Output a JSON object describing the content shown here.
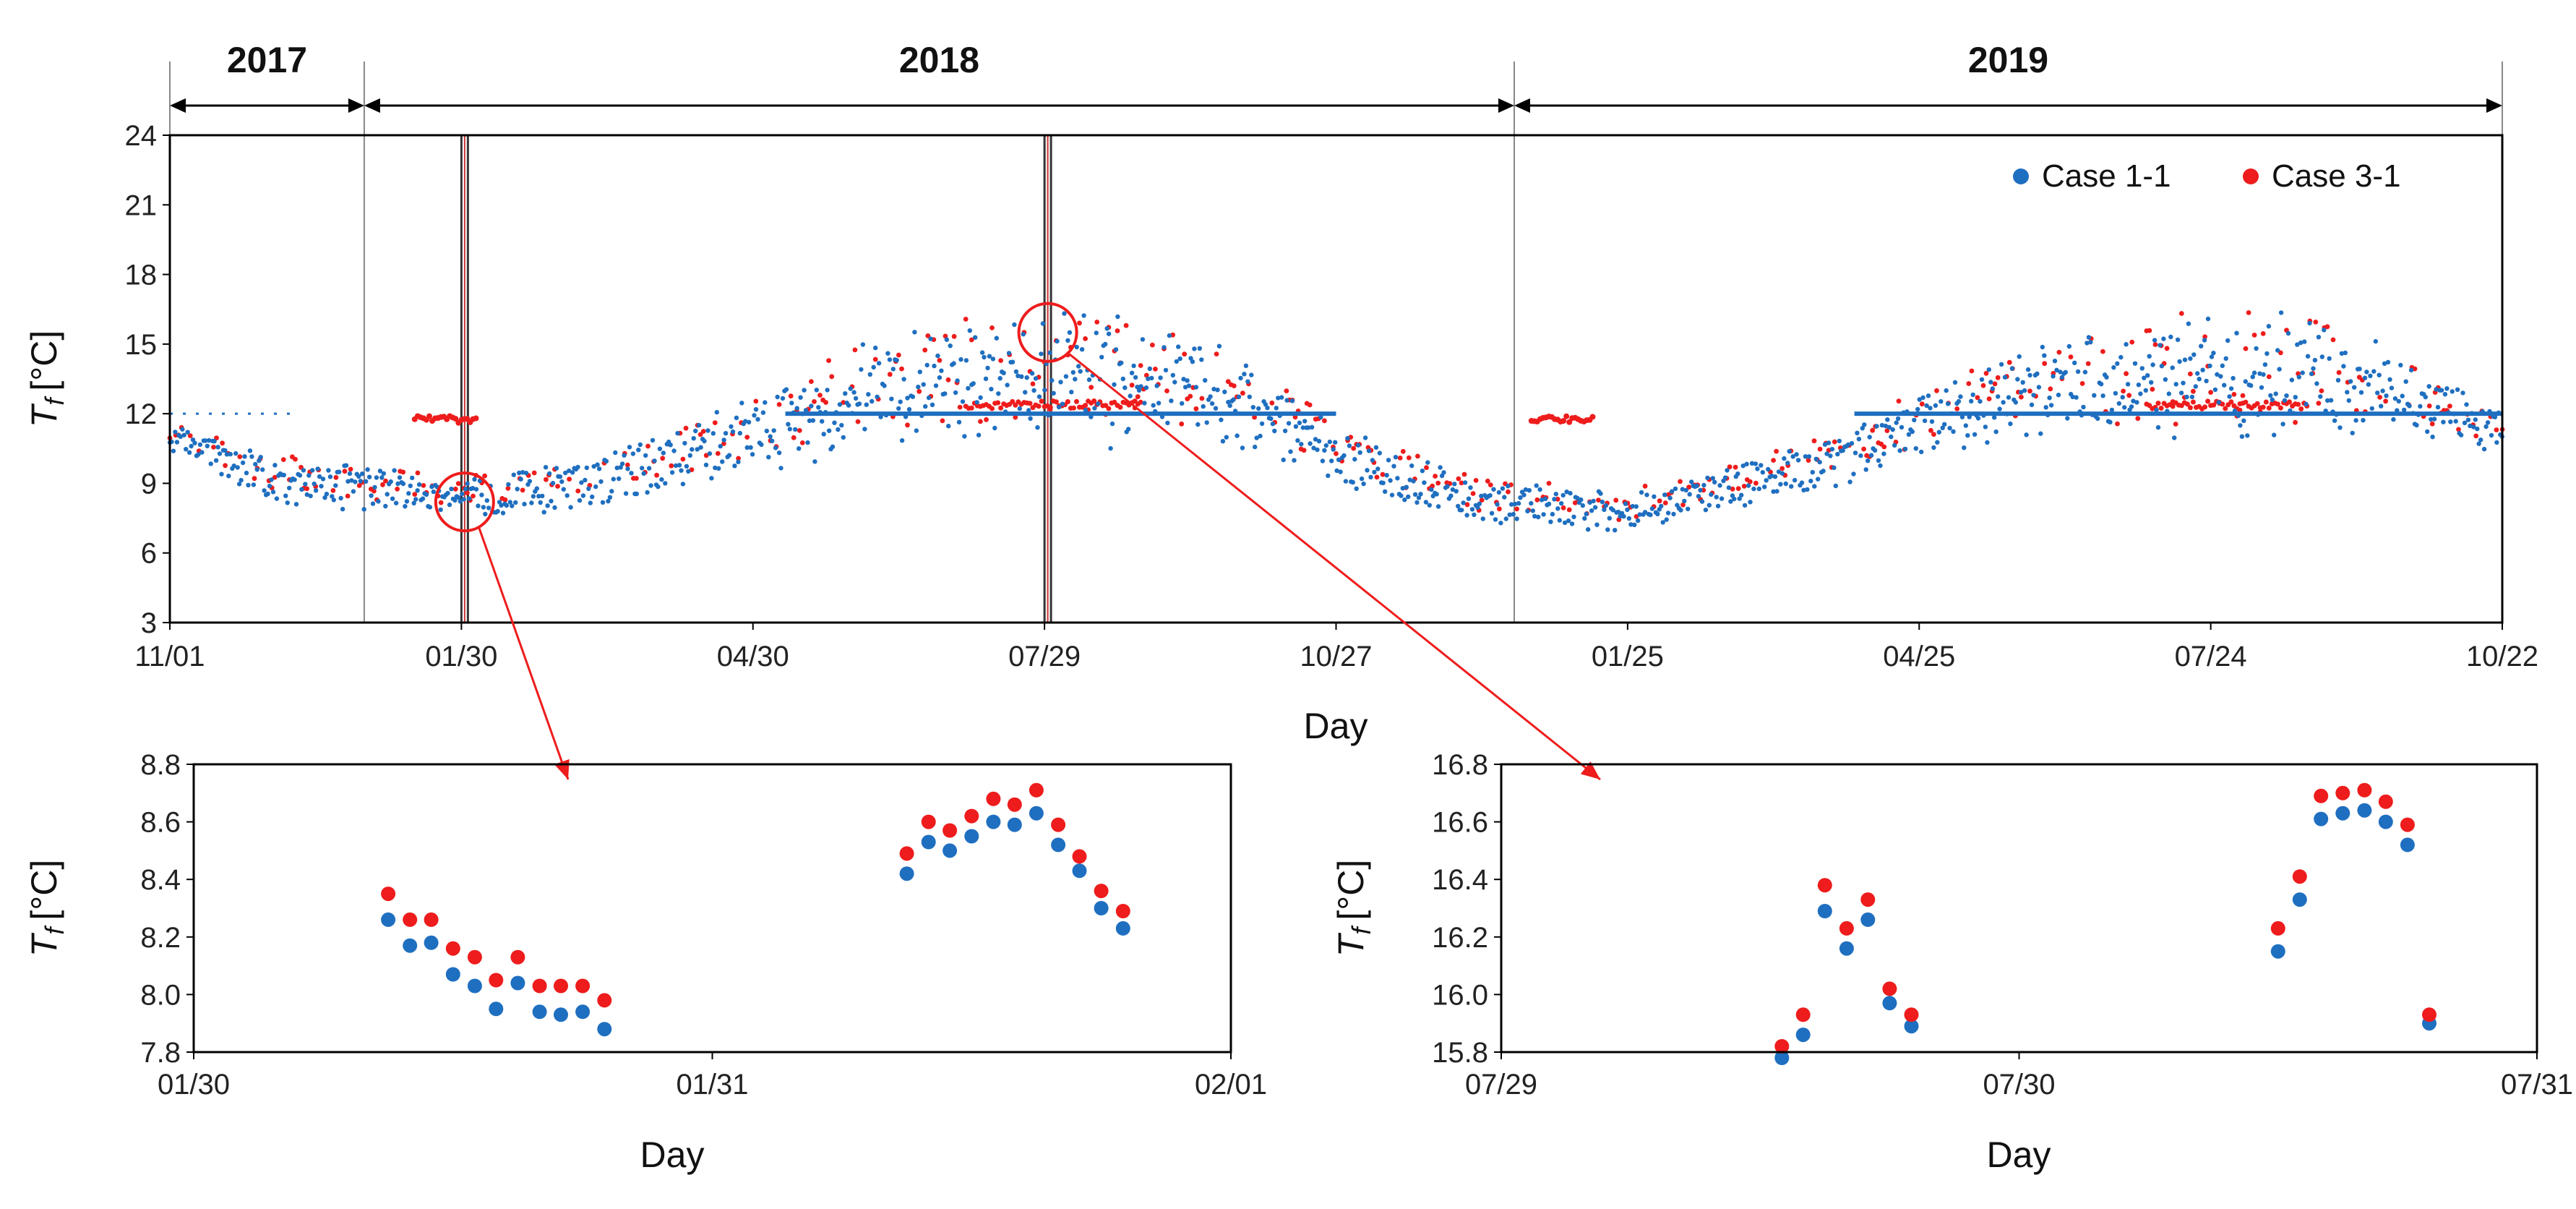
{
  "chart_data": [
    {
      "type": "scatter",
      "panel": "main",
      "ylabel_symbol": "T",
      "ylabel_sub": "f",
      "ylabel_unit": "[°C]",
      "xlabel": "Day",
      "ylim": [
        3,
        24
      ],
      "yticks": [
        "3",
        "6",
        "9",
        "12",
        "15",
        "18",
        "21",
        "24"
      ],
      "xlim": [
        0,
        720
      ],
      "xticks": [
        {
          "day": 0,
          "label": "11/01"
        },
        {
          "day": 90,
          "label": "01/30"
        },
        {
          "day": 180,
          "label": "04/30"
        },
        {
          "day": 270,
          "label": "07/29"
        },
        {
          "day": 360,
          "label": "10/27"
        },
        {
          "day": 450,
          "label": "01/25"
        },
        {
          "day": 540,
          "label": "04/25"
        },
        {
          "day": 630,
          "label": "07/24"
        },
        {
          "day": 720,
          "label": "10/22"
        }
      ],
      "years": [
        {
          "label": "2017",
          "start": 0,
          "end": 60
        },
        {
          "label": "2018",
          "start": 60,
          "end": 415
        },
        {
          "label": "2019",
          "start": 415,
          "end": 720
        }
      ],
      "year_boundaries": [
        60,
        415
      ],
      "highlight_windows": [
        {
          "start": 90,
          "end": 92
        },
        {
          "start": 270,
          "end": 272
        }
      ],
      "circles": [
        {
          "day": 91,
          "value": 8.2
        },
        {
          "day": 271,
          "value": 15.5
        }
      ],
      "legend": [
        {
          "name": "Case 1-1",
          "color": "#1f6fc0"
        },
        {
          "name": "Case 3-1",
          "color": "#ee1c1c"
        }
      ],
      "envelope": {
        "days": [
          0,
          30,
          60,
          90,
          120,
          150,
          180,
          210,
          240,
          270,
          300,
          330,
          360,
          390,
          405,
          420,
          450,
          480,
          510,
          540,
          570,
          600,
          630,
          660,
          690,
          720
        ],
        "case1_low_trend": [
          11,
          9,
          8.5,
          8.2,
          8.5,
          9.5,
          10.5,
          11.7,
          12,
          12,
          12,
          12,
          10,
          8.5,
          8,
          8,
          7.5,
          8.5,
          9.5,
          11,
          12,
          12,
          12,
          12,
          12,
          11
        ],
        "case1_high_trend": [
          11,
          9.5,
          9,
          8.6,
          9,
          10,
          11.5,
          13.5,
          14.5,
          15.5,
          15,
          13.5,
          10.5,
          9,
          8.3,
          8.3,
          8,
          9,
          10,
          12,
          13.5,
          14.5,
          15.5,
          15,
          13.5,
          11.5
        ],
        "case1_spread": [
          0.8,
          1,
          1,
          0.8,
          1.2,
          1.4,
          1.6,
          1.8,
          2,
          2,
          2,
          1.8,
          1.4,
          1.2,
          1,
          1,
          0.9,
          1,
          1.2,
          1.4,
          1.6,
          1.8,
          1.8,
          1.8,
          1.4,
          1
        ]
      }
    },
    {
      "type": "scatter",
      "panel": "zoom-left",
      "ylabel_symbol": "T",
      "ylabel_sub": "f",
      "ylabel_unit": "[°C]",
      "xlabel": "Day",
      "ylim": [
        7.8,
        8.8
      ],
      "yticks": [
        "7.8",
        "8.0",
        "8.2",
        "8.4",
        "8.6",
        "8.8"
      ],
      "xlim": [
        0,
        2
      ],
      "xticks": [
        {
          "x": 0,
          "label": "01/30"
        },
        {
          "x": 1,
          "label": "01/31"
        },
        {
          "x": 2,
          "label": "02/01"
        }
      ],
      "series": [
        {
          "name": "Case 1-1",
          "color": "#1f6fc0",
          "x": [
            0.375,
            0.417,
            0.458,
            0.5,
            0.542,
            0.583,
            0.625,
            0.667,
            0.708,
            0.75,
            0.792,
            1.375,
            1.417,
            1.458,
            1.5,
            1.542,
            1.583,
            1.625,
            1.667,
            1.708,
            1.75,
            1.792
          ],
          "values": [
            8.26,
            8.17,
            8.18,
            8.07,
            8.03,
            7.95,
            8.04,
            7.94,
            7.93,
            7.94,
            7.88,
            8.42,
            8.53,
            8.5,
            8.55,
            8.6,
            8.59,
            8.63,
            8.52,
            8.43,
            8.3,
            8.23
          ]
        },
        {
          "name": "Case 3-1",
          "color": "#ee1c1c",
          "x": [
            0.375,
            0.417,
            0.458,
            0.5,
            0.542,
            0.583,
            0.625,
            0.667,
            0.708,
            0.75,
            0.792,
            1.375,
            1.417,
            1.458,
            1.5,
            1.542,
            1.583,
            1.625,
            1.667,
            1.708,
            1.75,
            1.792
          ],
          "values": [
            8.35,
            8.26,
            8.26,
            8.16,
            8.13,
            8.05,
            8.13,
            8.03,
            8.03,
            8.03,
            7.98,
            8.49,
            8.6,
            8.57,
            8.62,
            8.68,
            8.66,
            8.71,
            8.59,
            8.48,
            8.36,
            8.29
          ]
        }
      ]
    },
    {
      "type": "scatter",
      "panel": "zoom-right",
      "ylabel_symbol": "T",
      "ylabel_sub": "f",
      "ylabel_unit": "[°C]",
      "xlabel": "Day",
      "ylim": [
        15.8,
        16.8
      ],
      "yticks": [
        "15.8",
        "16.0",
        "16.2",
        "16.4",
        "16.6",
        "16.8"
      ],
      "xlim": [
        0,
        2
      ],
      "xticks": [
        {
          "x": 0,
          "label": "07/29"
        },
        {
          "x": 1,
          "label": "07/30"
        },
        {
          "x": 2,
          "label": "07/31"
        }
      ],
      "series": [
        {
          "name": "Case 1-1",
          "color": "#1f6fc0",
          "x": [
            0.542,
            0.583,
            0.625,
            0.667,
            0.708,
            0.75,
            1.5,
            1.542,
            1.583,
            1.625,
            1.667,
            1.708,
            1.75,
            1.792
          ],
          "values": [
            15.78,
            15.86,
            16.29,
            16.16,
            16.26,
            15.97,
            16.15,
            16.33,
            16.61,
            16.63,
            16.64,
            16.6,
            16.52,
            15.9
          ],
          "extra_x": [
            0.792
          ],
          "extra_values": [
            15.89
          ]
        },
        {
          "name": "Case 3-1",
          "color": "#ee1c1c",
          "x": [
            0.542,
            0.583,
            0.625,
            0.667,
            0.708,
            0.75,
            1.5,
            1.542,
            1.583,
            1.625,
            1.667,
            1.708,
            1.75,
            1.792
          ],
          "values": [
            15.82,
            15.93,
            16.38,
            16.23,
            16.33,
            16.02,
            16.23,
            16.41,
            16.69,
            16.7,
            16.71,
            16.67,
            16.59,
            15.93
          ],
          "extra_x": [
            0.792
          ],
          "extra_values": [
            15.93
          ]
        }
      ]
    }
  ]
}
